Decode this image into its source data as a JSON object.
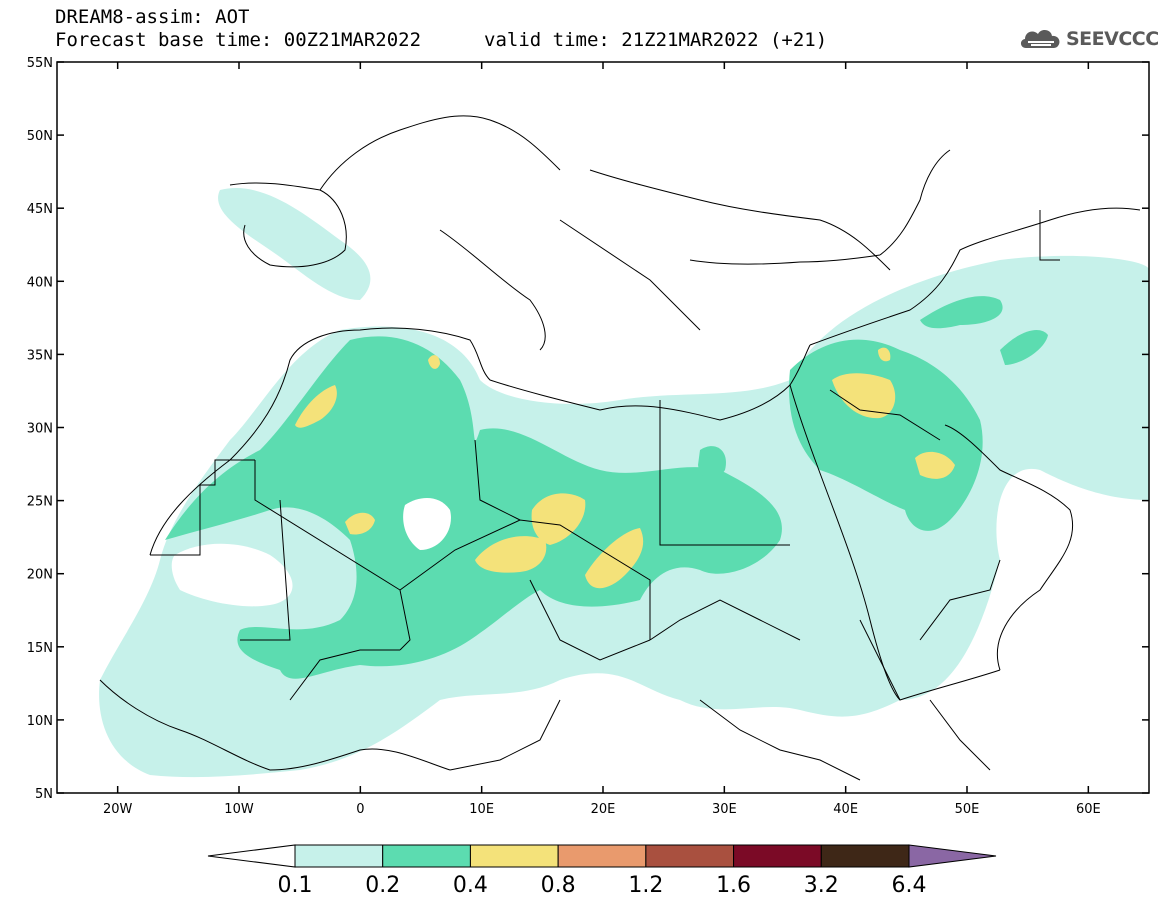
{
  "header": {
    "title": "DREAM8-assim: AOT",
    "base_time": "Forecast base time: 00Z21MAR2022",
    "valid_time": "valid time: 21Z21MAR2022 (+21)"
  },
  "logo": {
    "text": "SEEVCCC",
    "icon": "cloud-icon"
  },
  "map": {
    "lon_range": [
      -25,
      65
    ],
    "lat_range": [
      5,
      55
    ],
    "lat_ticks": [
      "55N",
      "50N",
      "45N",
      "40N",
      "35N",
      "30N",
      "25N",
      "20N",
      "15N",
      "10N",
      "5N"
    ],
    "lon_ticks": [
      "20W",
      "10W",
      "0",
      "10E",
      "20E",
      "30E",
      "40E",
      "50E",
      "60E"
    ]
  },
  "legend": {
    "levels": [
      "0.1",
      "0.2",
      "0.4",
      "0.8",
      "1.2",
      "1.6",
      "3.2",
      "6.4"
    ],
    "colors": [
      "#ffffff",
      "#c6f1ea",
      "#5cdcb0",
      "#f4e27a",
      "#e99a6d",
      "#a9503f",
      "#7b0a26",
      "#3e2717",
      "#8a67a4"
    ]
  }
}
